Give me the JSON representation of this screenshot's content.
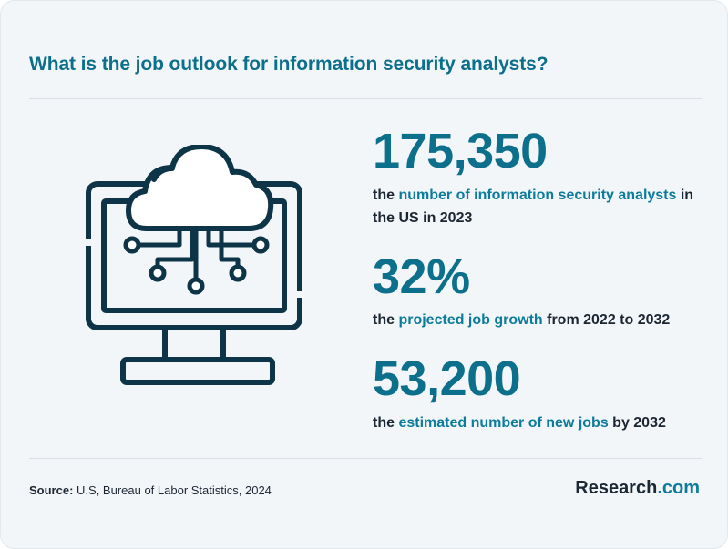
{
  "title": "What is the job outlook for information security analysts?",
  "stats": [
    {
      "value": "175,350",
      "pre": "the ",
      "highlight": "number of information security analysts",
      "post": " in the US in 2023"
    },
    {
      "value": "32%",
      "pre": "the ",
      "highlight": "projected job growth",
      "post": " from 2022 to 2032"
    },
    {
      "value": "53,200",
      "pre": "the ",
      "highlight": "estimated number of new jobs",
      "post": " by 2032"
    }
  ],
  "source": {
    "label": "Source:",
    "text": " U.S, Bureau of Labor Statistics, 2024"
  },
  "brand": {
    "name": "Research",
    "tld": ".com"
  },
  "illustration": {
    "icon": "cloud-computer-icon",
    "stroke_color": "#0d3447",
    "cloud_fill": "#ffffff"
  },
  "colors": {
    "accent": "#0c6f8c",
    "highlight": "#0c7c9c",
    "text": "#1c2633",
    "background": "#f3f6f8"
  }
}
